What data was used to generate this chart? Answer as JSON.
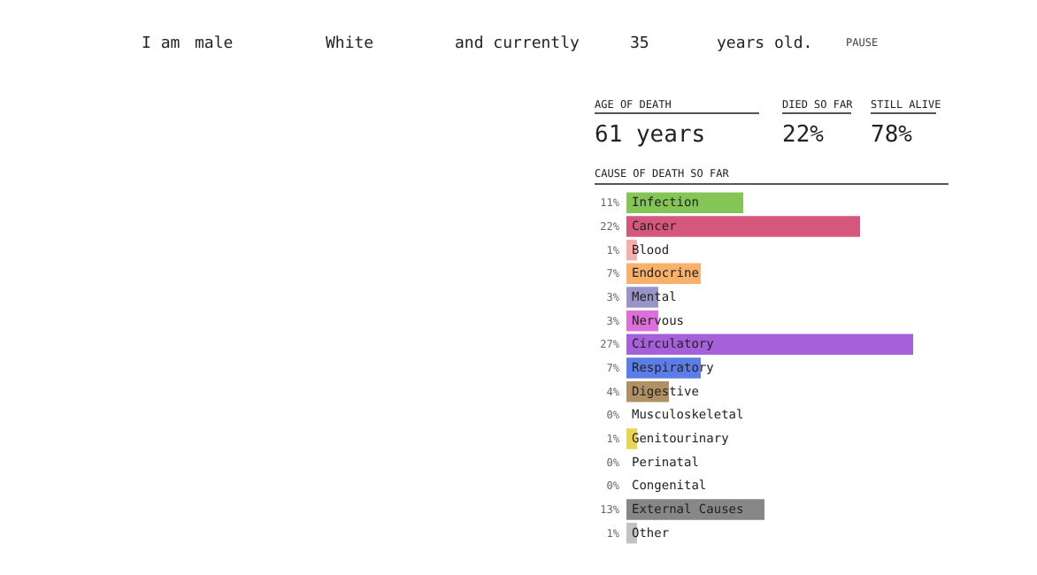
{
  "chart_data": {
    "type": "bar",
    "orientation": "horizontal",
    "title": "CAUSE OF DEATH SO FAR",
    "annotations": [
      "I am",
      "male",
      "White",
      "and currently",
      "35",
      "years old.",
      "PAUSE",
      "AGE OF DEATH",
      "61 years",
      "DIED SO FAR",
      "22%",
      "STILL ALIVE",
      "78%"
    ],
    "categories": [
      "Infection",
      "Cancer",
      "Blood",
      "Endocrine",
      "Mental",
      "Nervous",
      "Circulatory",
      "Respiratory",
      "Digestive",
      "Musculoskeletal",
      "Genitourinary",
      "Perinatal",
      "Congenital",
      "External Causes",
      "Other"
    ],
    "values": [
      11,
      22,
      1,
      7,
      3,
      3,
      27,
      7,
      4,
      0,
      1,
      0,
      0,
      13,
      1
    ],
    "value_labels": [
      "11%",
      "22%",
      "1%",
      "7%",
      "3%",
      "3%",
      "27%",
      "7%",
      "4%",
      "0%",
      "1%",
      "0%",
      "0%",
      "13%",
      "1%"
    ],
    "colors": [
      "#76c043",
      "#d0456e",
      "#f4a6a6",
      "#f6a95b",
      "#8f87c2",
      "#d95fd6",
      "#9b4fd6",
      "#4a6fe3",
      "#a88453",
      "#cccccc",
      "#e7cf43",
      "#cccccc",
      "#cccccc",
      "#7a7a7a",
      "#bbbbbb"
    ]
  }
}
